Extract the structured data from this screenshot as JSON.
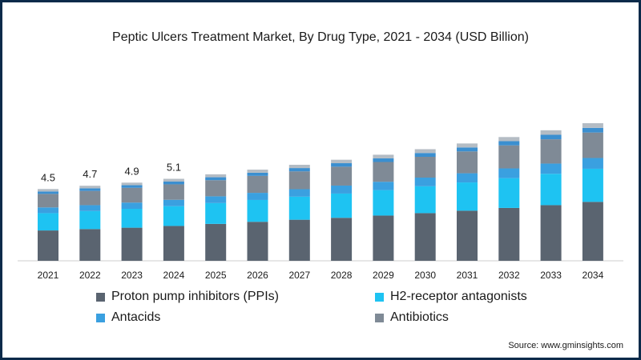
{
  "title": "Peptic Ulcers Treatment Market, By Drug Type, 2021 - 2034 (USD Billion)",
  "source": "Source: www.gminsights.com",
  "chart_data": {
    "type": "bar",
    "stacked": true,
    "title": "Peptic Ulcers Treatment Market, By Drug Type, 2021 - 2034 (USD Billion)",
    "xlabel": "",
    "ylabel": "",
    "categories": [
      "2021",
      "2022",
      "2023",
      "2024",
      "2025",
      "2026",
      "2027",
      "2028",
      "2029",
      "2030",
      "2031",
      "2032",
      "2033",
      "2034"
    ],
    "totals_labeled": {
      "2021": "4.5",
      "2022": "4.7",
      "2023": "4.9",
      "2024": "5.1"
    },
    "ylim": [
      0,
      12
    ],
    "series": [
      {
        "name": "Proton pump inhibitors (PPIs)",
        "color": "#5a6470",
        "values": [
          1.75,
          1.83,
          1.91,
          2.01,
          2.13,
          2.25,
          2.37,
          2.48,
          2.61,
          2.75,
          2.89,
          3.05,
          3.21,
          3.4
        ]
      },
      {
        "name": "H2-receptor antagonists",
        "color": "#1ec3f2",
        "values": [
          1.0,
          1.04,
          1.09,
          1.14,
          1.2,
          1.26,
          1.33,
          1.4,
          1.47,
          1.55,
          1.63,
          1.72,
          1.81,
          1.91
        ]
      },
      {
        "name": "Antacids",
        "color": "#3aa0e0",
        "values": [
          0.33,
          0.34,
          0.36,
          0.37,
          0.39,
          0.41,
          0.43,
          0.46,
          0.48,
          0.5,
          0.53,
          0.56,
          0.59,
          0.62
        ]
      },
      {
        "name": "Antibiotics",
        "color": "#7f8a96",
        "values": [
          0.78,
          0.82,
          0.85,
          0.89,
          0.93,
          0.98,
          1.03,
          1.09,
          1.14,
          1.2,
          1.26,
          1.33,
          1.4,
          1.47
        ]
      },
      {
        "name": "",
        "color": "#3b8fd0",
        "values": [
          0.14,
          0.15,
          0.15,
          0.16,
          0.17,
          0.18,
          0.19,
          0.2,
          0.21,
          0.22,
          0.23,
          0.24,
          0.26,
          0.27
        ]
      },
      {
        "name": "",
        "color": "#b4bcc4",
        "values": [
          0.14,
          0.15,
          0.15,
          0.16,
          0.17,
          0.18,
          0.19,
          0.2,
          0.21,
          0.22,
          0.23,
          0.24,
          0.26,
          0.27
        ]
      }
    ],
    "grid": false,
    "legend_placement": "bottom"
  },
  "legend": [
    {
      "label": "Proton pump inhibitors (PPIs)",
      "color": "#5a6470"
    },
    {
      "label": "H2-receptor antagonists",
      "color": "#1ec3f2"
    },
    {
      "label": "Antacids",
      "color": "#3aa0e0"
    },
    {
      "label": "Antibiotics",
      "color": "#7f8a96"
    }
  ]
}
